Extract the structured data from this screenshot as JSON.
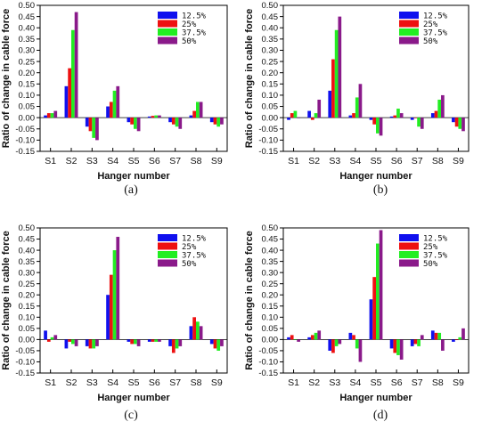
{
  "colors": {
    "12.5%": "#1010ee",
    "25%": "#ee1111",
    "37.5%": "#22ee22",
    "50%": "#8a1a8a"
  },
  "chart_data": [
    {
      "type": "bar",
      "caption": "(a)",
      "xlabel": "Hanger number",
      "ylabel": "Ratio of change in cable force",
      "categories": [
        "S1",
        "S2",
        "S3",
        "S4",
        "S5",
        "S6",
        "S7",
        "S8",
        "S9"
      ],
      "ylim": [
        -0.15,
        0.5
      ],
      "yticks": [
        "0.50",
        "0.45",
        "0.40",
        "0.35",
        "0.30",
        "0.25",
        "0.20",
        "0.15",
        "0.10",
        "0.05",
        "0.00",
        "-0.05",
        "-0.10",
        "-0.15"
      ],
      "legend_position": "top-right",
      "series": [
        {
          "name": "12.5%",
          "values": [
            0.01,
            0.14,
            -0.04,
            0.05,
            -0.02,
            0.005,
            -0.02,
            0.01,
            -0.02
          ]
        },
        {
          "name": "25%",
          "values": [
            0.02,
            0.22,
            -0.06,
            0.07,
            -0.03,
            0.008,
            -0.03,
            0.03,
            -0.03
          ]
        },
        {
          "name": "37.5%",
          "values": [
            0.02,
            0.39,
            -0.09,
            0.12,
            -0.05,
            0.01,
            -0.04,
            0.07,
            -0.04
          ]
        },
        {
          "name": "50%",
          "values": [
            0.03,
            0.47,
            -0.1,
            0.14,
            -0.06,
            0.01,
            -0.05,
            0.07,
            -0.03
          ]
        }
      ]
    },
    {
      "type": "bar",
      "caption": "(b)",
      "xlabel": "Hanger number",
      "ylabel": "Ratio of change in cable force",
      "categories": [
        "S1",
        "S2",
        "S3",
        "S4",
        "S5",
        "S6",
        "S7",
        "S8",
        "S9"
      ],
      "ylim": [
        -0.15,
        0.5
      ],
      "yticks": [
        "0.50",
        "0.45",
        "0.40",
        "0.35",
        "0.30",
        "0.25",
        "0.20",
        "0.15",
        "0.10",
        "0.05",
        "0.00",
        "-0.05",
        "-0.10",
        "-0.15"
      ],
      "legend_position": "top-right",
      "series": [
        {
          "name": "12.5%",
          "values": [
            -0.01,
            0.03,
            0.12,
            0.01,
            -0.01,
            0.005,
            -0.01,
            0.02,
            -0.02
          ]
        },
        {
          "name": "25%",
          "values": [
            0.02,
            -0.01,
            0.26,
            0.02,
            -0.03,
            0.01,
            0.0,
            0.03,
            -0.04
          ]
        },
        {
          "name": "37.5%",
          "values": [
            0.03,
            0.02,
            0.39,
            0.09,
            -0.07,
            0.04,
            -0.04,
            0.08,
            -0.05
          ]
        },
        {
          "name": "50%",
          "values": [
            0.0,
            0.08,
            0.45,
            0.15,
            -0.08,
            0.02,
            -0.05,
            0.1,
            -0.06
          ]
        }
      ]
    },
    {
      "type": "bar",
      "caption": "(c)",
      "xlabel": "Hanger number",
      "ylabel": "Ratio of change in cable force",
      "categories": [
        "S1",
        "S2",
        "S3",
        "S4",
        "S5",
        "S6",
        "S7",
        "S8",
        "S9"
      ],
      "ylim": [
        -0.15,
        0.5
      ],
      "yticks": [
        "0.50",
        "0.45",
        "0.40",
        "0.35",
        "0.30",
        "0.25",
        "0.20",
        "0.15",
        "0.10",
        "0.05",
        "0.00",
        "-0.05",
        "-0.10",
        "-0.15"
      ],
      "legend_position": "top-right",
      "series": [
        {
          "name": "12.5%",
          "values": [
            0.04,
            -0.04,
            -0.03,
            0.2,
            -0.01,
            -0.01,
            -0.03,
            0.06,
            -0.02
          ]
        },
        {
          "name": "25%",
          "values": [
            -0.01,
            -0.01,
            -0.04,
            0.29,
            -0.02,
            -0.01,
            -0.06,
            0.1,
            -0.04
          ]
        },
        {
          "name": "37.5%",
          "values": [
            0.01,
            -0.02,
            -0.04,
            0.4,
            -0.02,
            -0.01,
            -0.04,
            0.08,
            -0.05
          ]
        },
        {
          "name": "50%",
          "values": [
            0.02,
            -0.03,
            -0.03,
            0.46,
            -0.03,
            -0.01,
            -0.03,
            0.06,
            -0.03
          ]
        }
      ]
    },
    {
      "type": "bar",
      "caption": "(d)",
      "xlabel": "Hanger number",
      "ylabel": "Ratio of change in cable force",
      "categories": [
        "S1",
        "S2",
        "S3",
        "S4",
        "S5",
        "S6",
        "S7",
        "S8",
        "S9"
      ],
      "ylim": [
        -0.15,
        0.5
      ],
      "yticks": [
        "0.50",
        "0.45",
        "0.40",
        "0.35",
        "0.30",
        "0.25",
        "0.20",
        "0.15",
        "0.10",
        "0.05",
        "0.00",
        "-0.05",
        "-0.10",
        "-0.15"
      ],
      "legend_position": "top-right",
      "series": [
        {
          "name": "12.5%",
          "values": [
            0.01,
            0.01,
            -0.05,
            0.03,
            0.18,
            -0.04,
            -0.03,
            0.04,
            -0.01
          ]
        },
        {
          "name": "25%",
          "values": [
            0.02,
            0.02,
            -0.06,
            0.02,
            0.28,
            -0.06,
            -0.02,
            0.03,
            0.0
          ]
        },
        {
          "name": "37.5%",
          "values": [
            0.0,
            0.03,
            -0.03,
            -0.04,
            0.43,
            -0.07,
            -0.03,
            0.03,
            0.01
          ]
        },
        {
          "name": "50%",
          "values": [
            -0.01,
            0.04,
            -0.02,
            -0.1,
            0.49,
            -0.09,
            0.02,
            -0.05,
            0.05
          ]
        }
      ]
    }
  ]
}
